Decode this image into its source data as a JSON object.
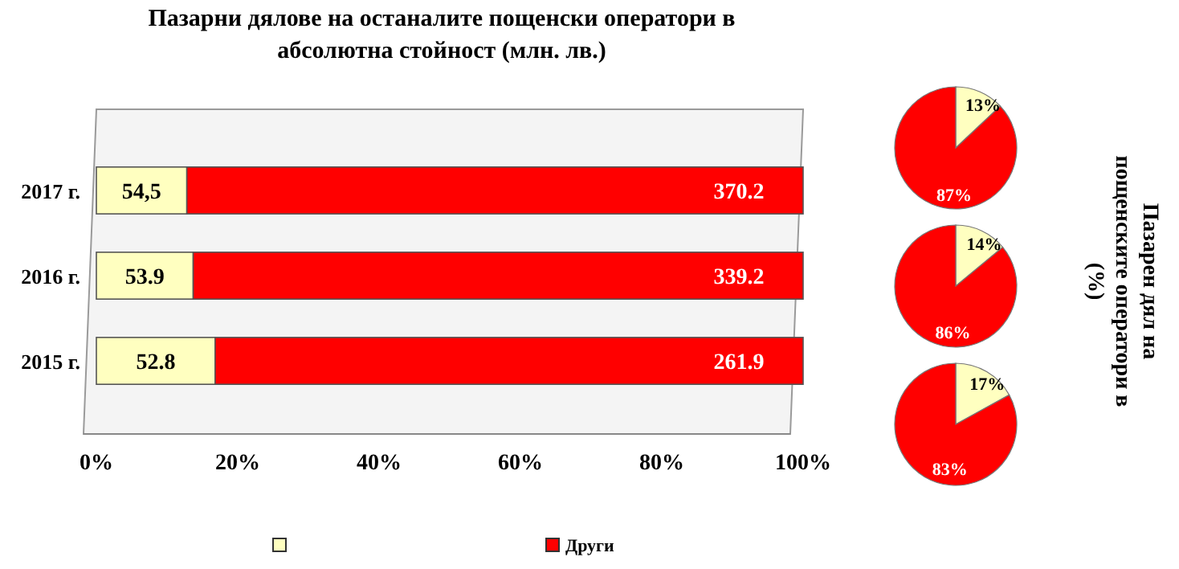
{
  "chart_data": [
    {
      "type": "bar",
      "orientation": "horizontal",
      "stacked": true,
      "title": "Пазарни дялове на останалите пощенски оператори в абсолютна стойност (млн. лв.)",
      "categories": [
        "2017 г.",
        "2016 г.",
        "2015 г."
      ],
      "series": [
        {
          "color": "#ffffc0",
          "values": [
            12.8,
            13.7,
            16.8
          ]
        },
        {
          "name": "Други",
          "color": "#ff0000",
          "values": [
            87.2,
            86.3,
            83.2
          ]
        }
      ],
      "annotations": [
        {
          "text": "54,5",
          "x": 12.8,
          "y": "2017 г."
        },
        {
          "text": "53.9",
          "x": 13.7,
          "y": "2016 г."
        },
        {
          "text": "52.8",
          "x": 16.8,
          "y": "2015 г."
        },
        {
          "text": "370.2",
          "x": 100,
          "y": "2017 г."
        },
        {
          "text": "339.2",
          "x": 100,
          "y": "2016 г."
        },
        {
          "text": "261.9",
          "x": 100,
          "y": "2015 г."
        }
      ],
      "xlim": [
        0,
        100
      ],
      "xticks": [
        {
          "value": 0,
          "label": "0%"
        },
        {
          "value": 20,
          "label": "20%"
        },
        {
          "value": 40,
          "label": "40%"
        },
        {
          "value": 60,
          "label": "60%"
        },
        {
          "value": 80,
          "label": "80%"
        },
        {
          "value": 100,
          "label": "100%"
        }
      ],
      "legend": "bottom"
    },
    {
      "type": "pie",
      "categories": [
        null,
        null
      ],
      "values": [
        13,
        87
      ],
      "colors": [
        "#ffffc0",
        "#ff0000"
      ],
      "value_labels": [
        "13%",
        "87%"
      ],
      "annotations": [
        "Пазарен дял на пощенските оператори в (%)"
      ]
    },
    {
      "type": "pie",
      "categories": [
        null,
        null
      ],
      "values": [
        14,
        86
      ],
      "colors": [
        "#ffffc0",
        "#ff0000"
      ],
      "value_labels": [
        "14%",
        "86%"
      ]
    },
    {
      "type": "pie",
      "categories": [
        null,
        null
      ],
      "values": [
        17,
        83
      ],
      "colors": [
        "#ffffc0",
        "#ff0000"
      ],
      "value_labels": [
        "17%",
        "83%"
      ]
    }
  ]
}
